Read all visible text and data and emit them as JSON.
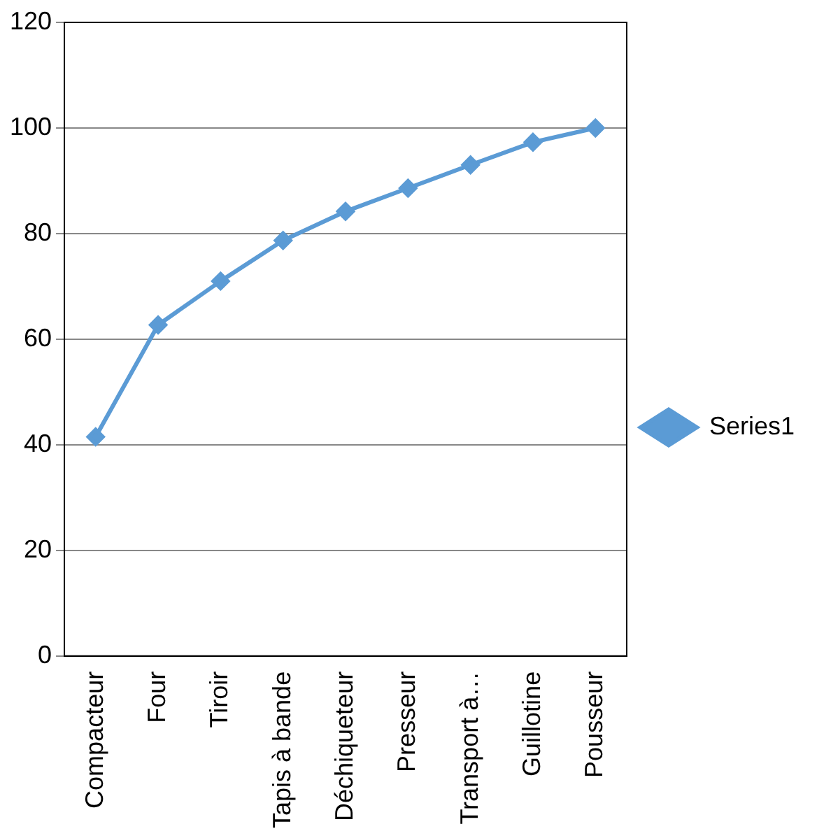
{
  "chart_data": {
    "type": "line",
    "categories": [
      "Compacteur",
      "Four",
      "Tiroir",
      "Tapis à bande",
      "Déchiqueteur",
      "Presseur",
      "Transport à…",
      "Guillotine",
      "Pousseur"
    ],
    "series": [
      {
        "name": "Series1",
        "color": "#5b9bd5",
        "values": [
          41.5,
          62.7,
          71,
          78.7,
          84.2,
          88.6,
          93,
          97.3,
          100
        ]
      }
    ],
    "ylim": [
      0,
      120
    ],
    "yticks": [
      0,
      20,
      40,
      60,
      80,
      100,
      120
    ],
    "grid": "y",
    "legend": "right",
    "marker": "diamond",
    "line_style": "solid"
  }
}
